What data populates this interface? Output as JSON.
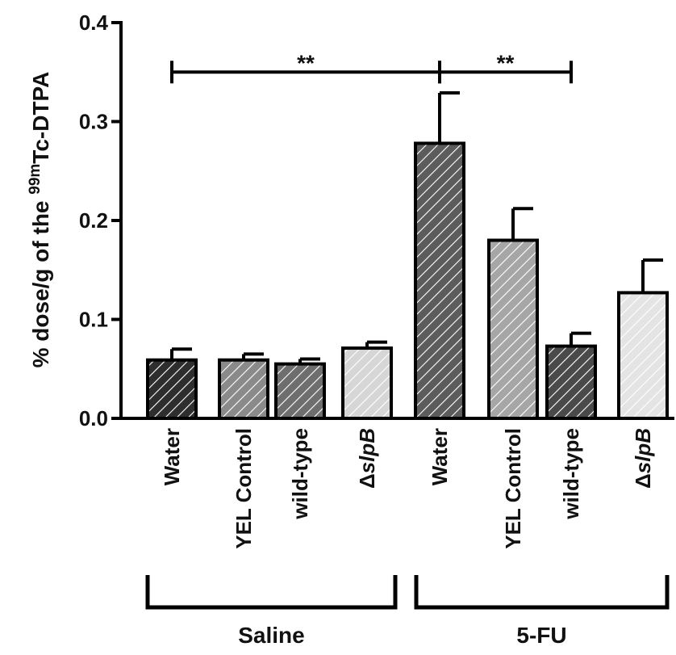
{
  "chart_data": {
    "type": "bar",
    "title": "",
    "xlabel": "",
    "ylabel": "% dose/g of the ^99m Tc-DTPA",
    "ylabel_parts": {
      "pre": "% dose/g of the ",
      "sup": "99m",
      "post": "Tc-DTPA"
    },
    "ylim": [
      0,
      0.4
    ],
    "yticks": [
      0.0,
      0.1,
      0.2,
      0.3,
      0.4
    ],
    "ytick_labels": [
      "0.0",
      "0.1",
      "0.2",
      "0.3",
      "0.4"
    ],
    "grid": false,
    "categories": [
      "Water",
      "YEL Control",
      "wild-type",
      "ΔslpB",
      "Water",
      "YEL Control",
      "wild-type",
      "ΔslpB"
    ],
    "category_labels": [
      {
        "pre": "",
        "main": "Water",
        "italic": false
      },
      {
        "pre": "",
        "main": "YEL Control",
        "italic": false
      },
      {
        "pre": "",
        "main": "wild-type",
        "italic": false
      },
      {
        "pre": "Δ",
        "main": "slpB",
        "italic": true
      },
      {
        "pre": "",
        "main": "Water",
        "italic": false
      },
      {
        "pre": "",
        "main": "YEL Control",
        "italic": false
      },
      {
        "pre": "",
        "main": "wild-type",
        "italic": false
      },
      {
        "pre": "Δ",
        "main": "slpB",
        "italic": true
      }
    ],
    "values": [
      0.059,
      0.059,
      0.055,
      0.071,
      0.278,
      0.18,
      0.073,
      0.127
    ],
    "errors": [
      0.011,
      0.006,
      0.005,
      0.006,
      0.051,
      0.032,
      0.013,
      0.033
    ],
    "fills": [
      "#2e2e2e",
      "#8a8a8a",
      "#6e6e6e",
      "#d6d6d6",
      "#5c5c5c",
      "#a6a6a6",
      "#4a4a4a",
      "#e4e4e4"
    ],
    "groups": [
      {
        "label": "Saline",
        "from": 0,
        "to": 3
      },
      {
        "label": "5-FU",
        "from": 4,
        "to": 7
      }
    ],
    "significance": [
      {
        "from": 0,
        "to": 4,
        "y": 0.35,
        "label": "**"
      },
      {
        "from": 4,
        "to": 6,
        "y": 0.35,
        "label": "**"
      }
    ]
  }
}
